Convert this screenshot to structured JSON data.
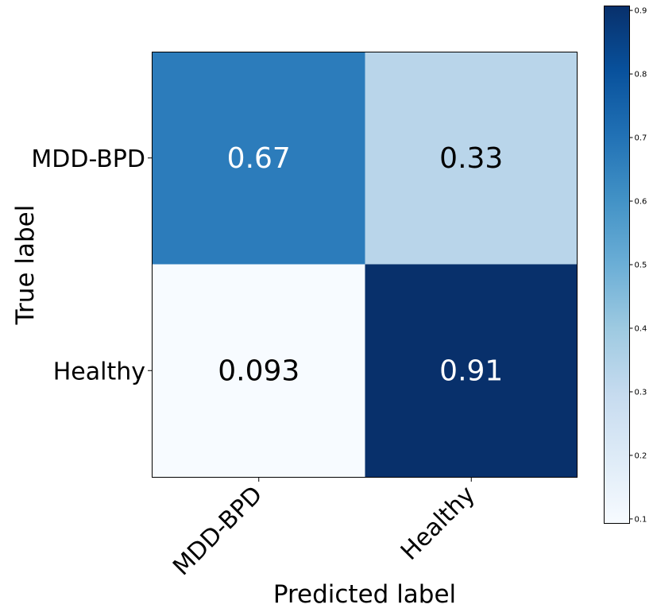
{
  "chart_data": {
    "type": "heatmap",
    "title": "",
    "xlabel": "Predicted label",
    "ylabel": "True label",
    "x_categories": [
      "MDD-BPD",
      "Healthy"
    ],
    "y_categories": [
      "MDD-BPD",
      "Healthy"
    ],
    "values": [
      [
        0.67,
        0.33
      ],
      [
        0.093,
        0.91
      ]
    ],
    "value_labels": [
      [
        "0.67",
        "0.33"
      ],
      [
        "0.093",
        "0.91"
      ]
    ],
    "colormap": "Blues",
    "colorbar": {
      "range": [
        0.093,
        0.907
      ],
      "ticks": [
        0.1,
        0.2,
        0.3,
        0.4,
        0.5,
        0.6,
        0.7,
        0.8,
        0.9
      ],
      "tick_labels": [
        "0.1",
        "0.2",
        "0.3",
        "0.4",
        "0.5",
        "0.6",
        "0.7",
        "0.8",
        "0.9"
      ]
    },
    "grid": false,
    "xtick_rotation": 45
  }
}
